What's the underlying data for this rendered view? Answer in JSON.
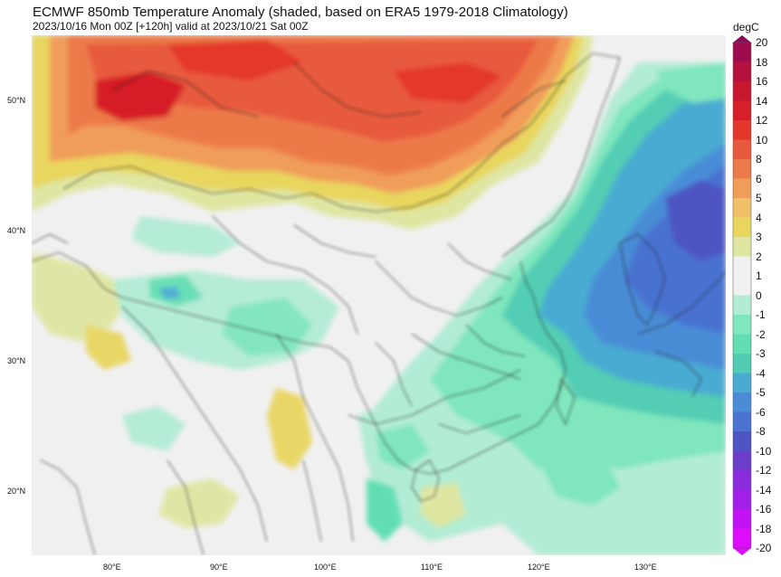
{
  "title": "ECMWF 850mb Temperature Anomaly (shaded, based on ERA5 1979-2018 Climatology)",
  "subtitle": "2023/10/16 Mon 00Z [+120h] valid at 2023/10/21 Sat 00Z",
  "latitude_labels": [
    "50°N",
    "40°N",
    "30°N",
    "20°N"
  ],
  "longitude_labels": [
    "80°E",
    "90°E",
    "100°E",
    "110°E",
    "120°E",
    "130°E"
  ],
  "colorbar": {
    "unit": "degC",
    "levels": [
      "20",
      "18",
      "16",
      "14",
      "12",
      "10",
      "8",
      "6",
      "5",
      "4",
      "3",
      "2",
      "1",
      "0",
      "-1",
      "-2",
      "-3",
      "-4",
      "-5",
      "-6",
      "-8",
      "-10",
      "-12",
      "-14",
      "-16",
      "-18",
      "-20"
    ],
    "colors": [
      "#8a0a5a",
      "#9e0c4f",
      "#b5113f",
      "#c8182f",
      "#d61f28",
      "#e3372c",
      "#e85a3d",
      "#ec7a4a",
      "#f09d5a",
      "#f1c169",
      "#e8d65e",
      "#dfe6a2",
      "#f0f0f0",
      "#f0f0f0",
      "#b2ecd4",
      "#7fe6bd",
      "#62dfb2",
      "#52cdb4",
      "#4aaad2",
      "#4a8cd6",
      "#4a72d0",
      "#4e55c2",
      "#6a3ec8",
      "#8a2bdc",
      "#a31ee8",
      "#c313f5",
      "#dd0cfa"
    ]
  },
  "colors": {
    "background": "#f0f0f0",
    "warm": "#ec7a4a",
    "cold": "#4a72d0"
  }
}
